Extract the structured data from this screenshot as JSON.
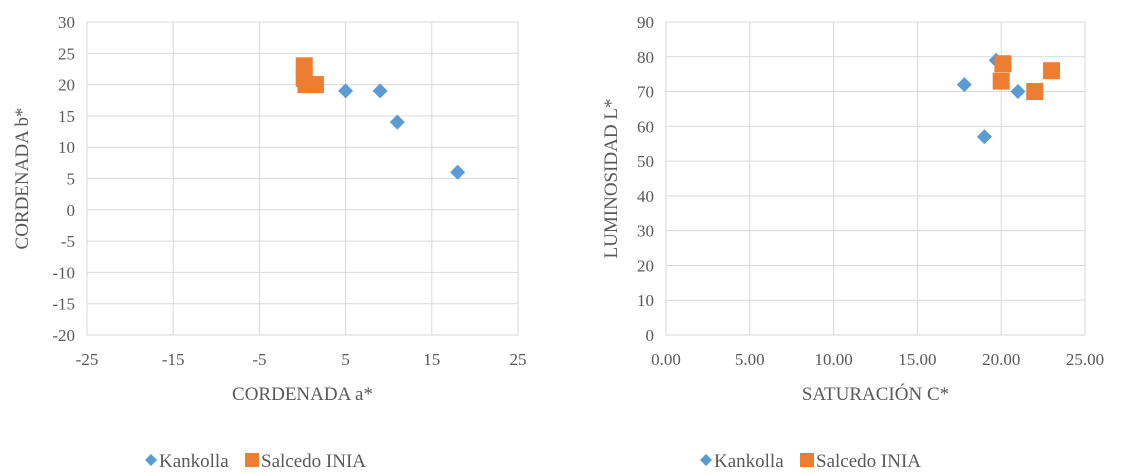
{
  "colors": {
    "kankolla": "#5b9bd5",
    "salcedo": "#ed7d31",
    "grid": "#d9d9d9",
    "text": "#595959"
  },
  "chart_data": [
    {
      "type": "scatter",
      "title": "",
      "xlabel": "CORDENADA a*",
      "ylabel": "CORDENADA b*",
      "xlim": [
        -25,
        25
      ],
      "ylim": [
        -20,
        30
      ],
      "xticks": [
        -25,
        -15,
        -5,
        5,
        15,
        25
      ],
      "xtick_labels": [
        "-25",
        "-15",
        "-5",
        "5",
        "15",
        "25"
      ],
      "yticks": [
        -20,
        -15,
        -10,
        -5,
        0,
        5,
        10,
        15,
        20,
        25,
        30
      ],
      "ytick_labels": [
        "-20",
        "-15",
        "-10",
        "-5",
        "0",
        "5",
        "10",
        "15",
        "20",
        "25",
        "30"
      ],
      "grid": true,
      "legend": "bottom",
      "series": [
        {
          "name": "Kankolla",
          "marker": "diamond",
          "points": [
            {
              "x": 5,
              "y": 19
            },
            {
              "x": 9,
              "y": 19
            },
            {
              "x": 11,
              "y": 14
            },
            {
              "x": 18,
              "y": 6
            }
          ]
        },
        {
          "name": "Salcedo INIA",
          "marker": "square",
          "points": [
            {
              "x": 0.2,
              "y": 23
            },
            {
              "x": 0.2,
              "y": 21
            },
            {
              "x": 0.4,
              "y": 20
            },
            {
              "x": 1.5,
              "y": 20
            }
          ]
        }
      ]
    },
    {
      "type": "scatter",
      "title": "",
      "xlabel": "SATURACIÓN C*",
      "ylabel": "LUMINOSIDAD L*",
      "xlim": [
        0,
        25
      ],
      "ylim": [
        0,
        90
      ],
      "xticks": [
        0,
        5,
        10,
        15,
        20,
        25
      ],
      "xtick_labels": [
        "0.00",
        "5.00",
        "10.00",
        "15.00",
        "20.00",
        "25.00"
      ],
      "yticks": [
        0,
        10,
        20,
        30,
        40,
        50,
        60,
        70,
        80,
        90
      ],
      "ytick_labels": [
        "0",
        "10",
        "20",
        "30",
        "40",
        "50",
        "60",
        "70",
        "80",
        "90"
      ],
      "grid": true,
      "legend": "bottom",
      "series": [
        {
          "name": "Kankolla",
          "marker": "diamond",
          "points": [
            {
              "x": 17.8,
              "y": 72
            },
            {
              "x": 19,
              "y": 57
            },
            {
              "x": 19.7,
              "y": 79
            },
            {
              "x": 21,
              "y": 70
            }
          ]
        },
        {
          "name": "Salcedo INIA",
          "marker": "square",
          "points": [
            {
              "x": 20,
              "y": 73
            },
            {
              "x": 20.1,
              "y": 78
            },
            {
              "x": 22,
              "y": 70
            },
            {
              "x": 23,
              "y": 76
            }
          ]
        }
      ]
    }
  ]
}
